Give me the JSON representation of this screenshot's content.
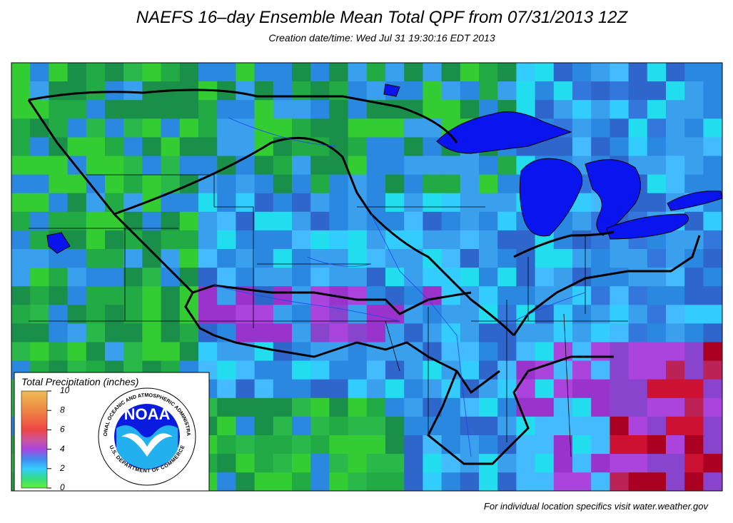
{
  "header": {
    "title": "NAEFS 16–day Ensemble Mean Total QPF from 07/31/2013 12Z",
    "subtitle": "Creation date/time: Wed Jul 31 19:30:16 EDT 2013"
  },
  "legend": {
    "title": "Total Precipitation (inches)",
    "ticks": [
      0,
      2,
      4,
      6,
      8,
      10
    ]
  },
  "logo": {
    "name": "NOAA",
    "agency": "NATIONAL OCEANIC AND ATMOSPHERIC ADMINISTRATION",
    "department": "U.S. DEPARTMENT OF COMMERCE"
  },
  "footer": "For individual location specifics visit water.weather.gov"
}
